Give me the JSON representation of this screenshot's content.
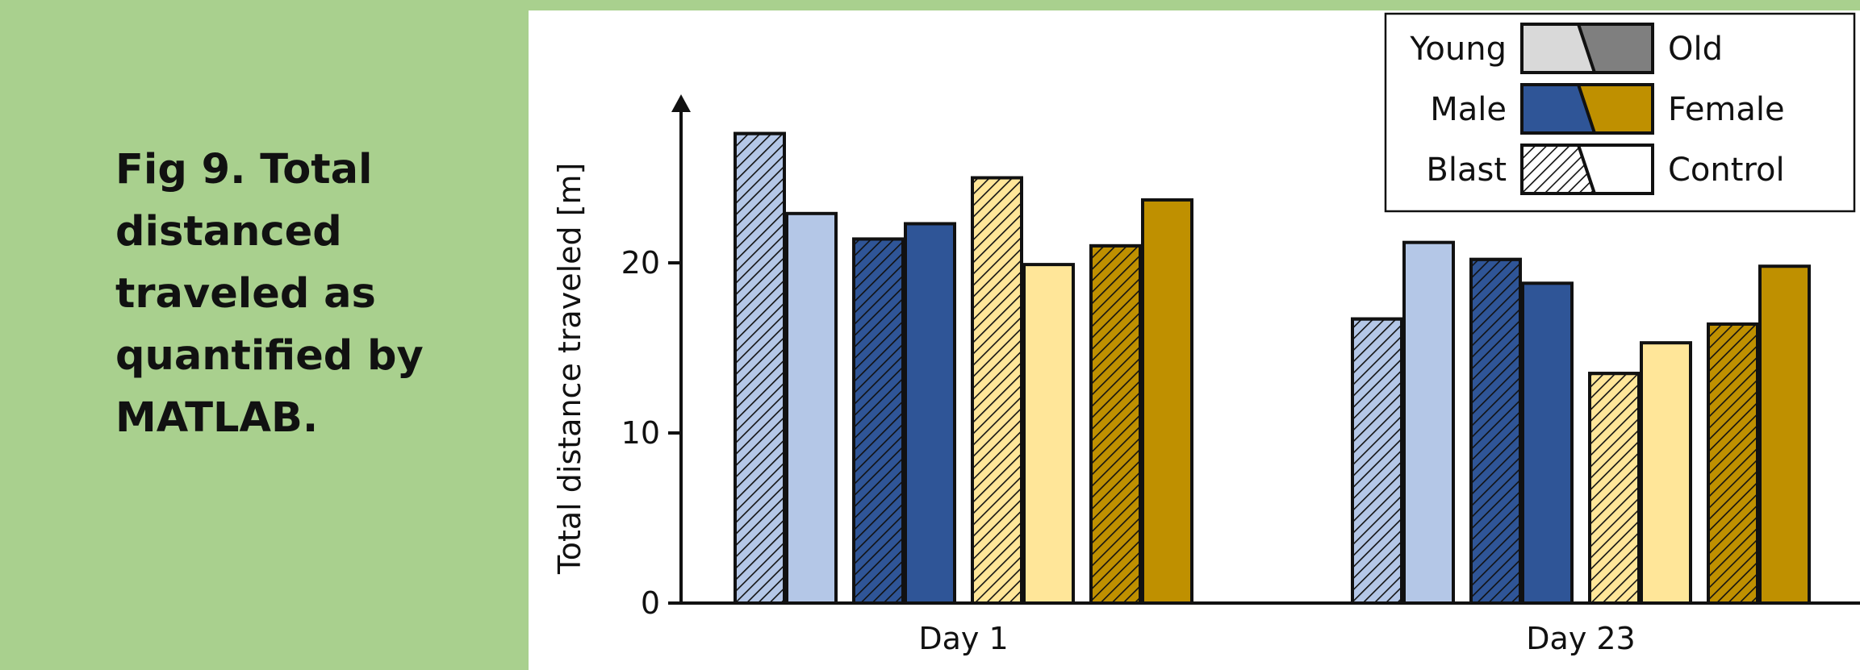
{
  "caption": "Fig 9. Total distanced traveled as quantified by MATLAB.",
  "colors": {
    "background": "#a9d08e",
    "young_male": "#b4c7e7",
    "old_male": "#2f5597",
    "young_female": "#ffe699",
    "old_female": "#bf9000",
    "legend_young": "#d9d9d9",
    "legend_old": "#7f7f7f"
  },
  "chart_data": {
    "type": "bar",
    "title": "",
    "xlabel": "",
    "ylabel": "Total distance traveled [m]",
    "ylim": [
      0,
      30
    ],
    "yticks": [
      0,
      10,
      20
    ],
    "grid": false,
    "legend_position": "top-right",
    "categories": [
      "Day 1",
      "Day 23"
    ],
    "series": [
      {
        "sex": "Male",
        "age": "Young",
        "condition": "Blast",
        "values": [
          27.6,
          16.7
        ]
      },
      {
        "sex": "Male",
        "age": "Young",
        "condition": "Control",
        "values": [
          22.9,
          21.2
        ]
      },
      {
        "sex": "Male",
        "age": "Old",
        "condition": "Blast",
        "values": [
          21.4,
          20.2
        ]
      },
      {
        "sex": "Male",
        "age": "Old",
        "condition": "Control",
        "values": [
          22.3,
          18.8
        ]
      },
      {
        "sex": "Female",
        "age": "Young",
        "condition": "Blast",
        "values": [
          25.0,
          13.5
        ]
      },
      {
        "sex": "Female",
        "age": "Young",
        "condition": "Control",
        "values": [
          19.9,
          15.3
        ]
      },
      {
        "sex": "Female",
        "age": "Old",
        "condition": "Blast",
        "values": [
          21.0,
          16.4
        ]
      },
      {
        "sex": "Female",
        "age": "Old",
        "condition": "Control",
        "values": [
          23.7,
          19.8
        ]
      }
    ],
    "legend": [
      {
        "left": "Young",
        "right": "Old",
        "left_color": "#d9d9d9",
        "right_color": "#7f7f7f",
        "left_hatched": false
      },
      {
        "left": "Male",
        "right": "Female",
        "left_color": "#2f5597",
        "right_color": "#bf9000",
        "left_hatched": false
      },
      {
        "left": "Blast",
        "right": "Control",
        "left_color": "#ffffff",
        "right_color": "#ffffff",
        "left_hatched": true
      }
    ]
  }
}
